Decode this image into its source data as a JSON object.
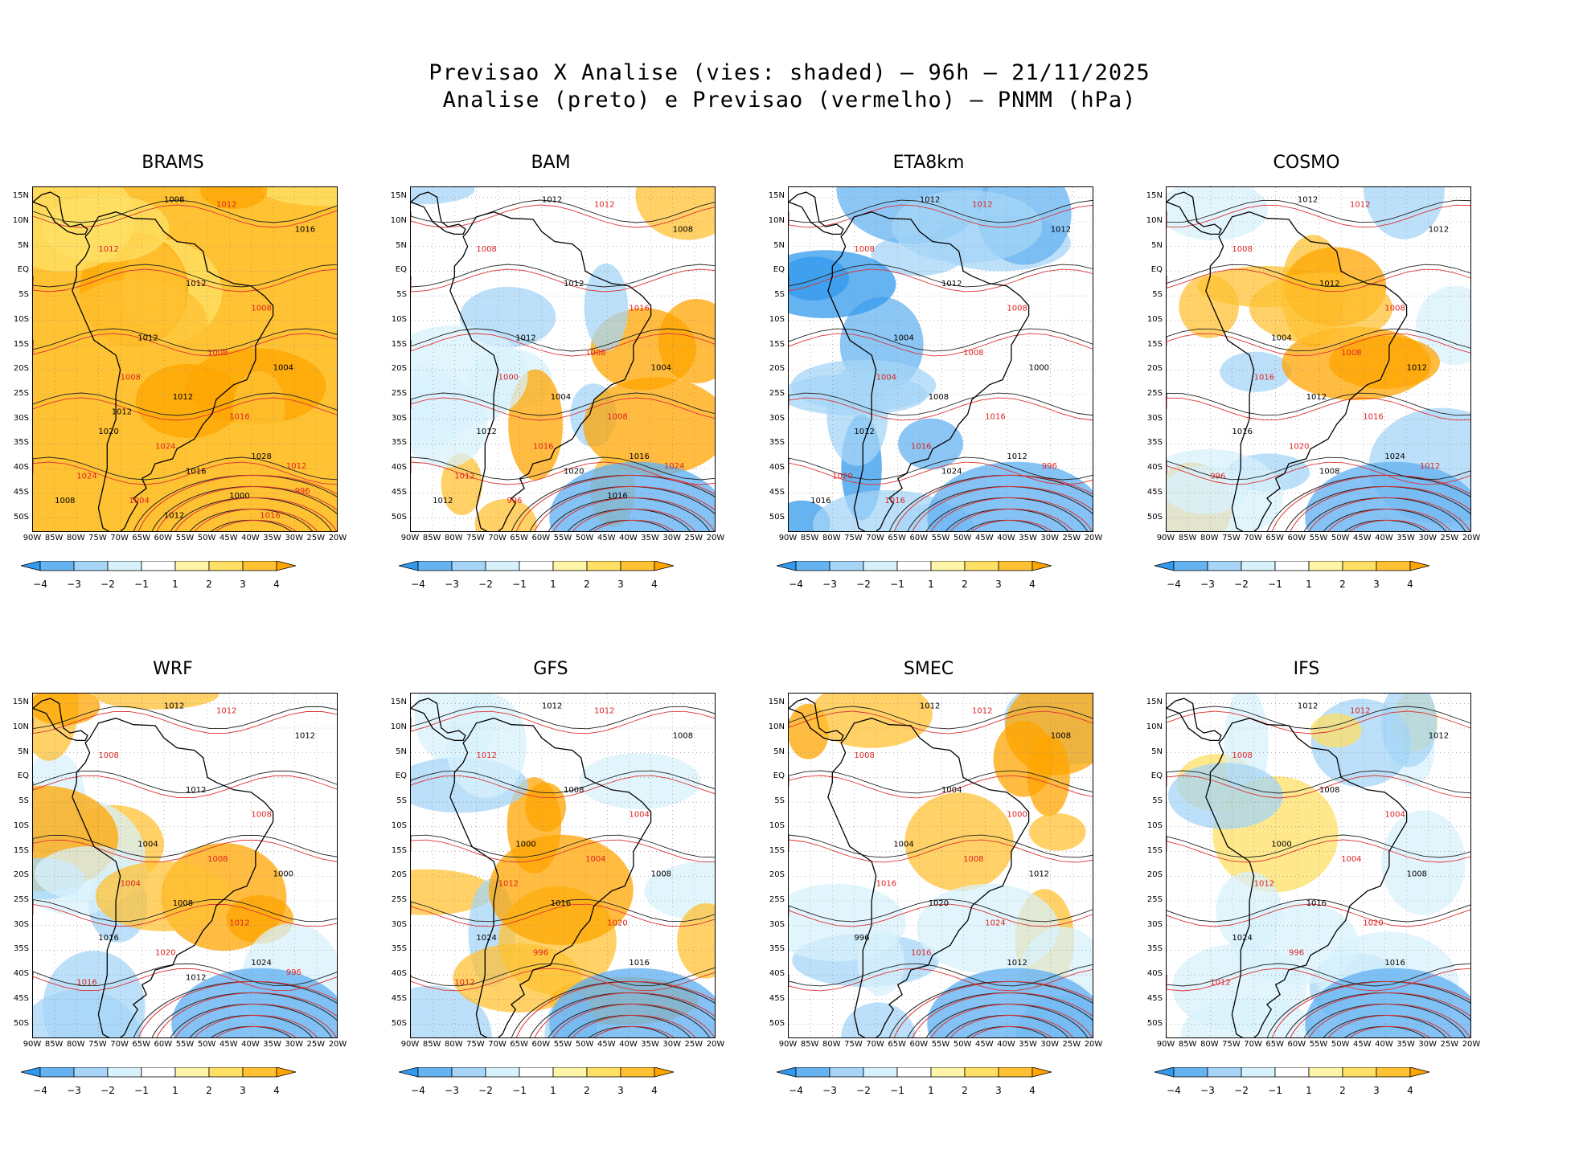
{
  "figure": {
    "title_line1": "Previsao X Analise (vies: shaded) — 96h — 21/11/2025",
    "title_line2": "Analise (preto) e Previsao (vermelho) — PNMM (hPa)"
  },
  "lat_labels": [
    "15N",
    "10N",
    "5N",
    "EQ",
    "5S",
    "10S",
    "15S",
    "20S",
    "25S",
    "30S",
    "35S",
    "40S",
    "45S",
    "50S"
  ],
  "lon_labels": [
    "90W",
    "85W",
    "80W",
    "75W",
    "70W",
    "65W",
    "60W",
    "55W",
    "50W",
    "45W",
    "40W",
    "35W",
    "30W",
    "25W",
    "20W"
  ],
  "colorbar": {
    "labels": [
      "−4",
      "−3",
      "−2",
      "−1",
      "1",
      "2",
      "3",
      "4"
    ],
    "colors": [
      "#3399ee",
      "#66b3f2",
      "#a6d5f7",
      "#d8f2fc",
      "#ffffff",
      "#fff5a8",
      "#ffe066",
      "#ffc233",
      "#ffa500"
    ]
  },
  "chart_data": {
    "type": "map",
    "variable": "PNMM (hPa) bias, 96h forecast vs analysis",
    "models": [
      {
        "name": "BRAMS",
        "bias": "positive",
        "contours": [
          "1008",
          "1012",
          "1016",
          "1012",
          "1012",
          "1008",
          "1012",
          "1008",
          "1004",
          "1008",
          "1012",
          "1016",
          "1020",
          "1024",
          "1028",
          "1024",
          "1016",
          "1012",
          "1008",
          "1004",
          "1000",
          "996",
          "1012",
          "1016",
          "1012"
        ]
      },
      {
        "name": "BAM",
        "bias": "mixed",
        "contours": [
          "1012",
          "1012",
          "1008",
          "1008",
          "1012",
          "1016",
          "1012",
          "1008",
          "1004",
          "1000",
          "1004",
          "1008",
          "1012",
          "1016",
          "1016",
          "1012",
          "1020",
          "1024",
          "1012",
          "996",
          "1016"
        ]
      },
      {
        "name": "ETA8km",
        "bias": "negative",
        "contours": [
          "1012",
          "1012",
          "1012",
          "1008",
          "1012",
          "1008",
          "1004",
          "1008",
          "1000",
          "1004",
          "1008",
          "1016",
          "1012",
          "1016",
          "1012",
          "1020",
          "1024",
          "996",
          "1016",
          "1016"
        ]
      },
      {
        "name": "COSMO",
        "bias": "mixed",
        "contours": [
          "1012",
          "1012",
          "1012",
          "1008",
          "1012",
          "1008",
          "1004",
          "1008",
          "1012",
          "1016",
          "1012",
          "1016",
          "1016",
          "1020",
          "1024",
          "996",
          "1008",
          "1012"
        ]
      },
      {
        "name": "WRF",
        "bias": "mixed",
        "contours": [
          "1012",
          "1012",
          "1012",
          "1008",
          "1012",
          "1008",
          "1004",
          "1008",
          "1000",
          "1004",
          "1008",
          "1012",
          "1016",
          "1020",
          "1024",
          "1016",
          "1012",
          "996"
        ]
      },
      {
        "name": "GFS",
        "bias": "mixed",
        "contours": [
          "1012",
          "1012",
          "1008",
          "1012",
          "1008",
          "1004",
          "1000",
          "1004",
          "1008",
          "1012",
          "1016",
          "1020",
          "1024",
          "996",
          "1016",
          "1012"
        ]
      },
      {
        "name": "SMEC",
        "bias": "mixed",
        "contours": [
          "1012",
          "1012",
          "1008",
          "1008",
          "1004",
          "1000",
          "1004",
          "1008",
          "1012",
          "1016",
          "1020",
          "1024",
          "996",
          "1016",
          "1012"
        ]
      },
      {
        "name": "IFS",
        "bias": "slightly-negative",
        "contours": [
          "1012",
          "1012",
          "1012",
          "1008",
          "1008",
          "1004",
          "1000",
          "1004",
          "1008",
          "1012",
          "1016",
          "1020",
          "1024",
          "996",
          "1016",
          "1012"
        ]
      }
    ]
  }
}
